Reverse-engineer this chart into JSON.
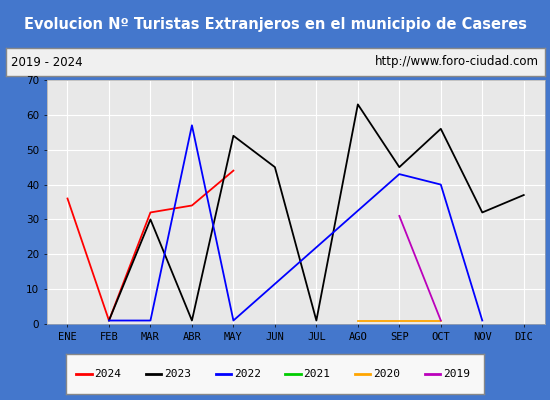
{
  "title": "Evolucion Nº Turistas Extranjeros en el municipio de Caseres",
  "subtitle_left": "2019 - 2024",
  "subtitle_right": "http://www.foro-ciudad.com",
  "months": [
    "ENE",
    "FEB",
    "MAR",
    "ABR",
    "MAY",
    "JUN",
    "JUL",
    "AGO",
    "SEP",
    "OCT",
    "NOV",
    "DIC"
  ],
  "series": {
    "2024": {
      "color": "#ff0000",
      "data": [
        36,
        1,
        32,
        34,
        44,
        null,
        null,
        null,
        null,
        null,
        null,
        null
      ]
    },
    "2023": {
      "color": "#000000",
      "data": [
        null,
        1,
        30,
        1,
        54,
        45,
        1,
        63,
        45,
        56,
        32,
        37
      ]
    },
    "2022": {
      "color": "#0000ff",
      "data": [
        null,
        1,
        1,
        57,
        1,
        null,
        null,
        null,
        43,
        40,
        1,
        null
      ]
    },
    "2021": {
      "color": "#00cc00",
      "data": [
        null,
        null,
        null,
        null,
        null,
        null,
        null,
        null,
        null,
        null,
        null,
        null
      ]
    },
    "2020": {
      "color": "#ffa500",
      "data": [
        null,
        null,
        null,
        null,
        null,
        null,
        null,
        1,
        null,
        1,
        null,
        null
      ]
    },
    "2019": {
      "color": "#bb00bb",
      "data": [
        null,
        null,
        null,
        null,
        null,
        null,
        null,
        null,
        31,
        1,
        null,
        null
      ]
    }
  },
  "ylim": [
    0,
    70
  ],
  "yticks": [
    0,
    10,
    20,
    30,
    40,
    50,
    60,
    70
  ],
  "title_bg": "#4477cc",
  "title_color": "#ffffff",
  "outer_bg": "#4477cc",
  "plot_bg": "#e8e8e8",
  "sub_bg": "#f0f0f0",
  "grid_color": "#ffffff",
  "legend_order": [
    "2024",
    "2023",
    "2022",
    "2021",
    "2020",
    "2019"
  ]
}
